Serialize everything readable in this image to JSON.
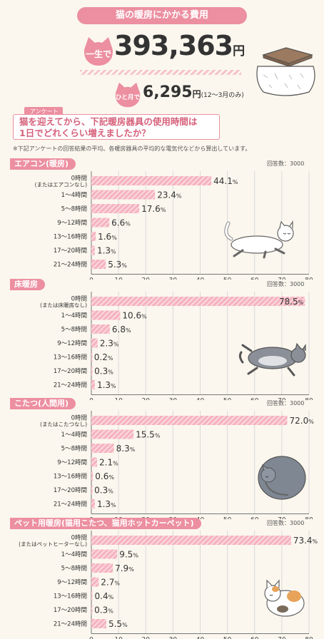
{
  "header": {
    "title": "猫の暖房にかかる費用",
    "lifetime_label": "一生で",
    "lifetime_value": "393,363",
    "lifetime_unit": "円",
    "monthly_label": "ひと月で",
    "monthly_value": "6,295",
    "monthly_unit": "円",
    "monthly_note": "(12～3月のみ)"
  },
  "survey": {
    "tag": "アンケート",
    "question_line1": "猫を迎えてから、下記暖房器具の使用時間は",
    "question_line2": "1日でどれくらい増えましたか？",
    "footnote": "※下記アンケートの回答結果の平均、各暖房器具の平均的な電気代などから算出しています。"
  },
  "colors": {
    "accent": "#ec8fa0",
    "bar_fill": "#f5b3bf",
    "bar_stripe": "#fbdfe4",
    "grid": "#d9d9d9"
  },
  "chart_data": [
    {
      "type": "bar",
      "title": "エアコン(暖房)",
      "respondents": "回答数：3000",
      "categories": [
        "0時間",
        "1～4時間",
        "5～8時間",
        "9～12時間",
        "13～16時間",
        "17～20時間",
        "21～24時間"
      ],
      "category_sub": [
        "(またはエアコンなし)",
        "",
        "",
        "",
        "",
        "",
        ""
      ],
      "values": [
        44.1,
        23.4,
        17.6,
        6.6,
        1.6,
        1.3,
        5.3
      ],
      "xlim": [
        0,
        80
      ],
      "xticks": [
        "0",
        "10",
        "20",
        "30",
        "40",
        "50",
        "60",
        "70",
        "80"
      ],
      "value_suffix": "%",
      "grid": true
    },
    {
      "type": "bar",
      "title": "床暖房",
      "respondents": "回答数：3000",
      "categories": [
        "0時間",
        "1～4時間",
        "5～8時間",
        "9～12時間",
        "13～16時間",
        "17～20時間",
        "21～24時間"
      ],
      "category_sub": [
        "(または床暖房なし)",
        "",
        "",
        "",
        "",
        "",
        ""
      ],
      "values": [
        78.5,
        10.6,
        6.8,
        2.3,
        0.2,
        0.3,
        1.3
      ],
      "xlim": [
        0,
        80
      ],
      "xticks": [
        "0",
        "10",
        "20",
        "30",
        "40",
        "50",
        "60",
        "70",
        "80"
      ],
      "value_suffix": "%",
      "grid": true
    },
    {
      "type": "bar",
      "title": "こたつ(人間用)",
      "respondents": "回答数：3000",
      "categories": [
        "0時間",
        "1～4時間",
        "5～8時間",
        "9～12時間",
        "13～16時間",
        "17～20時間",
        "21～24時間"
      ],
      "category_sub": [
        "(またはこたつなし)",
        "",
        "",
        "",
        "",
        "",
        ""
      ],
      "values": [
        72.0,
        15.5,
        8.3,
        2.1,
        0.6,
        0.3,
        1.3
      ],
      "xlim": [
        0,
        80
      ],
      "xticks": [
        "0",
        "10",
        "20",
        "30",
        "40",
        "50",
        "60",
        "70",
        "80"
      ],
      "value_suffix": "%",
      "grid": true
    },
    {
      "type": "bar",
      "title": "ペット用暖房(猫用こたつ、猫用ホットカーペット)",
      "respondents": "回答数：3000",
      "categories": [
        "0時間",
        "1～4時間",
        "5～8時間",
        "9～12時間",
        "13～16時間",
        "17～20時間",
        "21～24時間"
      ],
      "category_sub": [
        "(またはペットヒーターなし)",
        "",
        "",
        "",
        "",
        "",
        ""
      ],
      "values": [
        73.4,
        9.5,
        7.9,
        2.7,
        0.4,
        0.3,
        5.5
      ],
      "xlim": [
        0,
        80
      ],
      "xticks": [
        "0",
        "10",
        "20",
        "30",
        "40",
        "50",
        "60",
        "70",
        "80"
      ],
      "value_suffix": "%",
      "grid": true
    }
  ]
}
